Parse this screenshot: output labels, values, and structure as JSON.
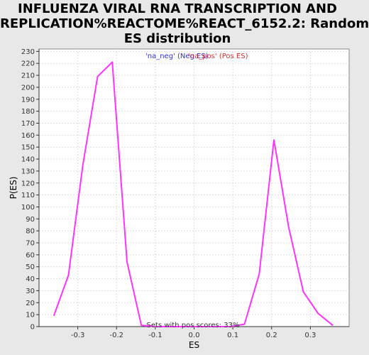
{
  "chart_data": {
    "type": "line",
    "title_lines": [
      "INFLUENZA VIRAL RNA TRANSCRIPTION AND",
      "REPLICATION%REACTOME%REACT_6152.2: Random",
      "ES distribution"
    ],
    "xlabel": "ES",
    "ylabel": "P(ES)",
    "xlim": [
      -0.4,
      0.4
    ],
    "ylim": [
      0,
      232
    ],
    "x_ticks": [
      "-0.3",
      "-0.2",
      "-0.1",
      "0.0",
      "0.1",
      "0.2",
      "0.3"
    ],
    "x_tick_values": [
      -0.3,
      -0.2,
      -0.1,
      0.0,
      0.1,
      0.2,
      0.3
    ],
    "y_ticks": [
      0,
      10,
      20,
      30,
      40,
      50,
      60,
      70,
      80,
      90,
      100,
      110,
      120,
      130,
      140,
      150,
      160,
      170,
      180,
      190,
      200,
      210,
      220,
      230
    ],
    "grid": true,
    "legend": {
      "placement": "top-center",
      "entries": [
        "'na_neg' (Neg ES)",
        "'na_pos' (Pos ES)"
      ]
    },
    "annotation": "Sets with pos scores: 33%",
    "series": [
      {
        "color": "#ff33ff",
        "x": [
          -0.362,
          -0.324,
          -0.287,
          -0.249,
          -0.211,
          -0.173,
          -0.136,
          -0.098,
          -0.06,
          -0.022,
          0.016,
          0.054,
          0.092,
          0.13,
          0.168,
          0.206,
          0.244,
          0.282,
          0.32,
          0.358
        ],
        "y": [
          9,
          43,
          135,
          209,
          221,
          54,
          1,
          0,
          0,
          0,
          0,
          0,
          0,
          2,
          44,
          156,
          83,
          29,
          11,
          1
        ]
      }
    ]
  }
}
